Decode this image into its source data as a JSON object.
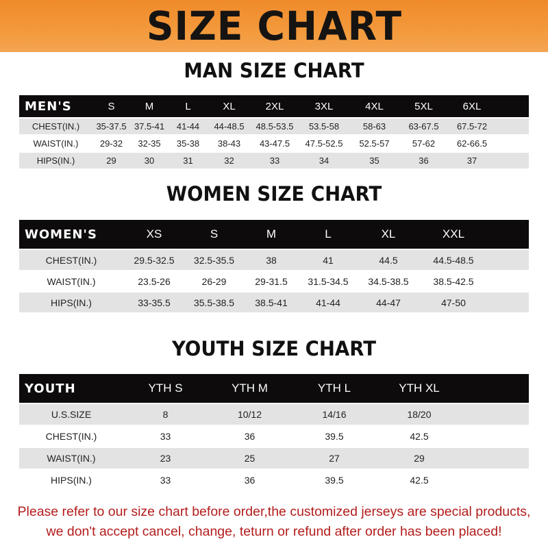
{
  "banner": "SIZE CHART",
  "men": {
    "title": "MAN SIZE CHART",
    "header": [
      "MEN'S",
      "S",
      "M",
      "L",
      "XL",
      "2XL",
      "3XL",
      "4XL",
      "5XL",
      "6XL"
    ],
    "rows": [
      [
        "CHEST(IN.)",
        "35-37.5",
        "37.5-41",
        "41-44",
        "44-48.5",
        "48.5-53.5",
        "53.5-58",
        "58-63",
        "63-67.5",
        "67.5-72"
      ],
      [
        "WAIST(IN.)",
        "29-32",
        "32-35",
        "35-38",
        "38-43",
        "43-47.5",
        "47.5-52.5",
        "52.5-57",
        "57-62",
        "62-66.5"
      ],
      [
        "HIPS(IN.)",
        "29",
        "30",
        "31",
        "32",
        "33",
        "34",
        "35",
        "36",
        "37"
      ]
    ]
  },
  "women": {
    "title": "WOMEN SIZE CHART",
    "header": [
      "WOMEN'S",
      "XS",
      "S",
      "M",
      "L",
      "XL",
      "XXL"
    ],
    "rows": [
      [
        "CHEST(IN.)",
        "29.5-32.5",
        "32.5-35.5",
        "38",
        "41",
        "44.5",
        "44.5-48.5"
      ],
      [
        "WAIST(IN.)",
        "23.5-26",
        "26-29",
        "29-31.5",
        "31.5-34.5",
        "34.5-38.5",
        "38.5-42.5"
      ],
      [
        "HIPS(IN.)",
        "33-35.5",
        "35.5-38.5",
        "38.5-41",
        "41-44",
        "44-47",
        "47-50"
      ]
    ]
  },
  "youth": {
    "title": "YOUTH SIZE CHART",
    "header": [
      "YOUTH",
      "YTH S",
      "YTH M",
      "YTH L",
      "YTH XL"
    ],
    "rows": [
      [
        "U.S.SIZE",
        "8",
        "10/12",
        "14/16",
        "18/20"
      ],
      [
        "CHEST(IN.)",
        "33",
        "36",
        "39.5",
        "42.5"
      ],
      [
        "WAIST(IN.)",
        "23",
        "25",
        "27",
        "29"
      ],
      [
        "HIPS(IN.)",
        "33",
        "36",
        "39.5",
        "42.5"
      ]
    ]
  },
  "note": [
    "Please refer to our size chart before order,the customized jerseys are special products,",
    "we don't accept cancel, change, teturn or refund after order has been placed!"
  ],
  "colors": {
    "banner": "#f39a3c",
    "header_row": "#0d0b0b",
    "stripe": "#e3e3e3",
    "note": "#b31c1c"
  }
}
